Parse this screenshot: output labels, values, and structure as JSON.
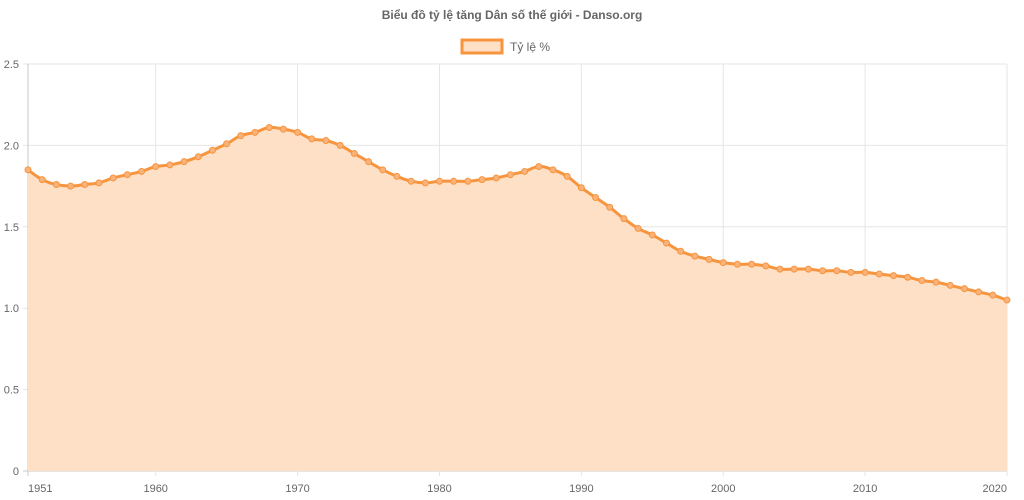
{
  "chart_data": {
    "type": "area",
    "title": "Biểu đồ tỷ lệ tăng Dân số thế giới - Danso.org",
    "legend": {
      "position": "top",
      "label": "Tỷ lệ %"
    },
    "xlabel": "",
    "ylabel": "",
    "xlim": [
      1951,
      2020
    ],
    "ylim": [
      0,
      2.5
    ],
    "x_ticks": [
      "1951",
      "1960",
      "1970",
      "1980",
      "1990",
      "2000",
      "2010",
      "2020"
    ],
    "y_ticks": [
      "0",
      "0.5",
      "1.0",
      "1.5",
      "2.0",
      "2.5"
    ],
    "grid": true,
    "colors": {
      "line": "#f7953f",
      "fill": "#fde0c5",
      "point": "#f9b27a"
    },
    "x": [
      1951,
      1952,
      1953,
      1954,
      1955,
      1956,
      1957,
      1958,
      1959,
      1960,
      1961,
      1962,
      1963,
      1964,
      1965,
      1966,
      1967,
      1968,
      1969,
      1970,
      1971,
      1972,
      1973,
      1974,
      1975,
      1976,
      1977,
      1978,
      1979,
      1980,
      1981,
      1982,
      1983,
      1984,
      1985,
      1986,
      1987,
      1988,
      1989,
      1990,
      1991,
      1992,
      1993,
      1994,
      1995,
      1996,
      1997,
      1998,
      1999,
      2000,
      2001,
      2002,
      2003,
      2004,
      2005,
      2006,
      2007,
      2008,
      2009,
      2010,
      2011,
      2012,
      2013,
      2014,
      2015,
      2016,
      2017,
      2018,
      2019,
      2020
    ],
    "series": [
      {
        "name": "Tỷ lệ %",
        "values": [
          1.85,
          1.79,
          1.76,
          1.75,
          1.76,
          1.77,
          1.8,
          1.82,
          1.84,
          1.87,
          1.88,
          1.9,
          1.93,
          1.97,
          2.01,
          2.06,
          2.08,
          2.11,
          2.1,
          2.08,
          2.04,
          2.03,
          2.0,
          1.95,
          1.9,
          1.85,
          1.81,
          1.78,
          1.77,
          1.78,
          1.78,
          1.78,
          1.79,
          1.8,
          1.82,
          1.84,
          1.87,
          1.85,
          1.81,
          1.74,
          1.68,
          1.62,
          1.55,
          1.49,
          1.45,
          1.4,
          1.35,
          1.32,
          1.3,
          1.28,
          1.27,
          1.27,
          1.26,
          1.24,
          1.24,
          1.24,
          1.23,
          1.23,
          1.22,
          1.22,
          1.21,
          1.2,
          1.19,
          1.17,
          1.16,
          1.14,
          1.12,
          1.1,
          1.08,
          1.05
        ]
      }
    ]
  }
}
